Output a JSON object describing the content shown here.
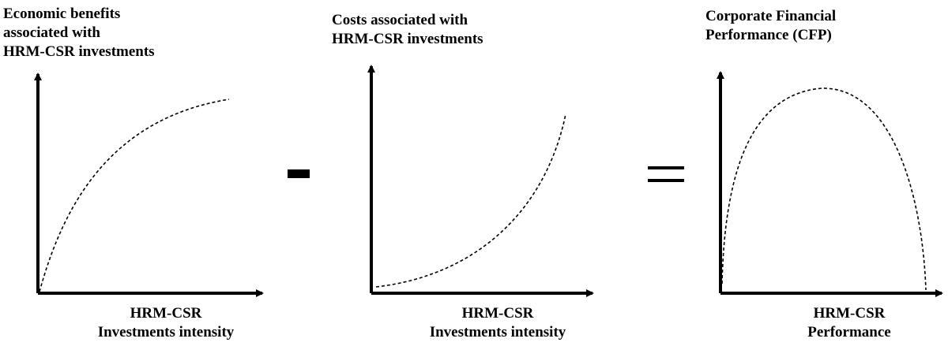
{
  "panels": [
    {
      "y_label_lines": [
        "Economic benefits",
        "associated with",
        "HRM-CSR investments"
      ],
      "x_label_lines": [
        "HRM-CSR",
        "Investments intensity"
      ],
      "curve": "concave-increasing"
    },
    {
      "y_label_lines": [
        "Costs associated with",
        "HRM-CSR investments"
      ],
      "x_label_lines": [
        "HRM-CSR",
        "Investments intensity"
      ],
      "curve": "convex-increasing"
    },
    {
      "y_label_lines": [
        "Corporate Financial",
        "Performance (CFP)"
      ],
      "x_label_lines": [
        "HRM-CSR",
        "Performance"
      ],
      "curve": "inverted-u"
    }
  ],
  "operators": {
    "minus": "-",
    "equals": "="
  },
  "colors": {
    "line": "#000000",
    "background": "#ffffff"
  }
}
